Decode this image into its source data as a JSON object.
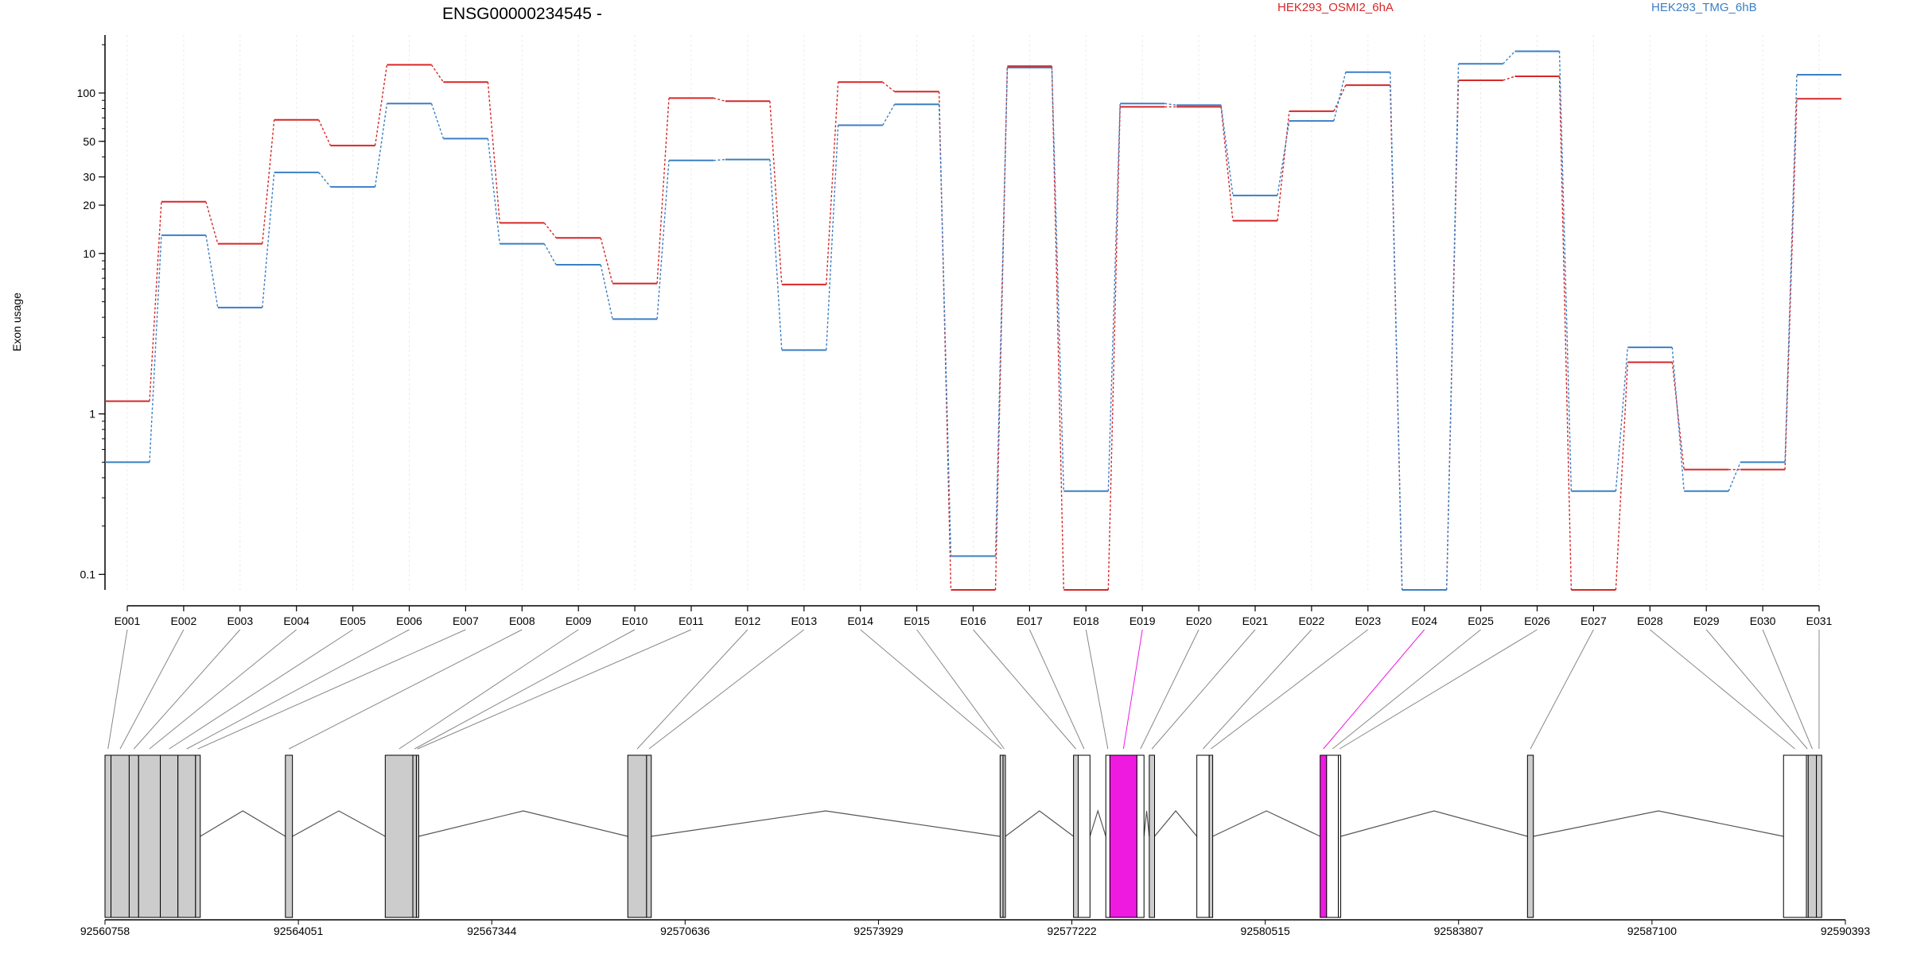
{
  "chart_data": {
    "type": "line",
    "title": "ENSG00000234545 -",
    "xlabel": "",
    "ylabel": "Exon usage",
    "y_scale": "log",
    "ylim": [
      0.08,
      230
    ],
    "y_ticks": [
      {
        "value": 0.1,
        "label": "0.1"
      },
      {
        "value": 1,
        "label": "1"
      },
      {
        "value": 10,
        "label": "10"
      },
      {
        "value": 20,
        "label": "20"
      },
      {
        "value": 30,
        "label": "30"
      },
      {
        "value": 50,
        "label": "50"
      },
      {
        "value": 100,
        "label": "100"
      }
    ],
    "legend_placement": "top-right",
    "categories": [
      "E001",
      "E002",
      "E003",
      "E004",
      "E005",
      "E006",
      "E007",
      "E008",
      "E009",
      "E010",
      "E011",
      "E012",
      "E013",
      "E014",
      "E015",
      "E016",
      "E017",
      "E018",
      "E019",
      "E020",
      "E021",
      "E022",
      "E023",
      "E024",
      "E025",
      "E026",
      "E027",
      "E028",
      "E029",
      "E030",
      "E031"
    ],
    "series": [
      {
        "name": "HEK293_OSMI2_6hA",
        "color": "#d62728",
        "values": [
          1.2,
          21,
          11.5,
          68,
          47,
          150,
          117,
          15.5,
          12.5,
          6.5,
          93,
          89,
          6.4,
          117,
          102,
          0.08,
          147,
          0.08,
          82,
          82,
          16,
          77,
          112,
          0.08,
          120,
          127,
          0.08,
          2.1,
          0.45,
          0.45,
          92
        ]
      },
      {
        "name": "HEK293_TMG_6hB",
        "color": "#3b7fc4",
        "values": [
          0.5,
          13,
          4.6,
          32,
          26,
          86,
          52,
          11.5,
          8.5,
          3.9,
          38,
          38.5,
          2.5,
          63,
          85,
          0.13,
          144,
          0.33,
          86,
          84,
          23,
          67,
          135,
          0.08,
          152,
          182,
          0.33,
          2.6,
          0.33,
          0.5,
          130
        ]
      }
    ],
    "genomic_axis": {
      "tick_labels": [
        "92560758",
        "92564051",
        "92567344",
        "92570636",
        "92573929",
        "92577222",
        "92580515",
        "92583807",
        "92587100",
        "92590393"
      ],
      "tick_values": [
        92560758,
        92564051,
        92567344,
        92570636,
        92573929,
        92577222,
        92580515,
        92583807,
        92587100,
        92590393
      ],
      "range": [
        92560758,
        92590393
      ]
    },
    "exon_model": {
      "highlight_color": "#ee1ae0",
      "exon_fill": "#cccccc",
      "exons": [
        {
          "id": "E001",
          "start": 92560758,
          "end": 92560860,
          "fill": "grey"
        },
        {
          "id": "E002",
          "start": 92560860,
          "end": 92561170,
          "fill": "grey"
        },
        {
          "id": "E003",
          "start": 92561170,
          "end": 92561330,
          "fill": "grey"
        },
        {
          "id": "E004",
          "start": 92561330,
          "end": 92561700,
          "fill": "grey"
        },
        {
          "id": "E005",
          "start": 92561700,
          "end": 92562000,
          "fill": "grey"
        },
        {
          "id": "E006",
          "start": 92562000,
          "end": 92562300,
          "fill": "grey"
        },
        {
          "id": "E007",
          "start": 92562300,
          "end": 92562380,
          "fill": "grey"
        },
        {
          "id": "E008",
          "start": 92563830,
          "end": 92563950,
          "fill": "grey"
        },
        {
          "id": "E009",
          "start": 92565530,
          "end": 92566000,
          "fill": "grey"
        },
        {
          "id": "E010",
          "start": 92566000,
          "end": 92566060,
          "fill": "grey"
        },
        {
          "id": "E011",
          "start": 92566060,
          "end": 92566100,
          "fill": "grey"
        },
        {
          "id": "E012",
          "start": 92569660,
          "end": 92569980,
          "fill": "grey"
        },
        {
          "id": "E013",
          "start": 92569980,
          "end": 92570060,
          "fill": "grey"
        },
        {
          "id": "E014",
          "start": 92576000,
          "end": 92576050,
          "fill": "grey"
        },
        {
          "id": "E015",
          "start": 92576050,
          "end": 92576090,
          "fill": "grey"
        },
        {
          "id": "E016",
          "start": 92577250,
          "end": 92577330,
          "fill": "grey"
        },
        {
          "id": "E017",
          "start": 92577330,
          "end": 92577530,
          "fill": "white"
        },
        {
          "id": "E018",
          "start": 92577800,
          "end": 92577870,
          "fill": "white"
        },
        {
          "id": "E019",
          "start": 92577870,
          "end": 92578330,
          "fill": "magenta"
        },
        {
          "id": "E020",
          "start": 92578330,
          "end": 92578450,
          "fill": "white"
        },
        {
          "id": "E021",
          "start": 92578540,
          "end": 92578630,
          "fill": "grey"
        },
        {
          "id": "E022",
          "start": 92579350,
          "end": 92579560,
          "fill": "white"
        },
        {
          "id": "E023",
          "start": 92579560,
          "end": 92579620,
          "fill": "grey"
        },
        {
          "id": "E024",
          "start": 92581450,
          "end": 92581560,
          "fill": "magenta"
        },
        {
          "id": "E025",
          "start": 92581560,
          "end": 92581760,
          "fill": "white"
        },
        {
          "id": "E026",
          "start": 92581760,
          "end": 92581800,
          "fill": "white"
        },
        {
          "id": "E027",
          "start": 92584980,
          "end": 92585080,
          "fill": "grey"
        },
        {
          "id": "E028",
          "start": 92589340,
          "end": 92589730,
          "fill": "white"
        },
        {
          "id": "E029",
          "start": 92589730,
          "end": 92589760,
          "fill": "white"
        },
        {
          "id": "E030",
          "start": 92589760,
          "end": 92589900,
          "fill": "grey"
        },
        {
          "id": "E031",
          "start": 92589900,
          "end": 92589990,
          "fill": "grey"
        }
      ],
      "introns": [
        [
          92562380,
          92563830
        ],
        [
          92563950,
          92565530
        ],
        [
          92566100,
          92569660
        ],
        [
          92570060,
          92576000
        ],
        [
          92576090,
          92577250
        ],
        [
          92577530,
          92577800
        ],
        [
          92578450,
          92578540
        ],
        [
          92578630,
          92579350
        ],
        [
          92579620,
          92581450
        ],
        [
          92581800,
          92584980
        ],
        [
          92585080,
          92589340
        ]
      ]
    }
  }
}
